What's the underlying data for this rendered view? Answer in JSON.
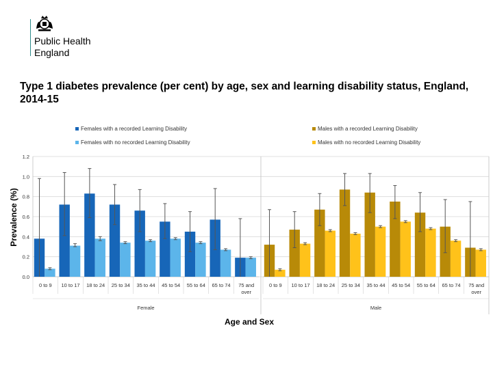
{
  "header": {
    "org_line1": "Public Health",
    "org_line2": "England",
    "title": "Type 1 diabetes prevalence (per cent) by age, sex and learning disability status, England, 2014-15"
  },
  "colors": {
    "female_ld": "#1766b8",
    "female_no_ld": "#5cb5ea",
    "male_ld": "#b88a08",
    "male_no_ld": "#ffc21a",
    "grid": "#d9d9d9",
    "error_bar": "#555555"
  },
  "chart_data": {
    "type": "bar",
    "title": "Type 1 diabetes prevalence (per cent) by age, sex and learning disability status, England, 2014-15",
    "xlabel": "Age and Sex",
    "ylabel": "Prevalence (%)",
    "ylim": [
      0,
      1.2
    ],
    "yticks": [
      "0.0",
      "0.2",
      "0.4",
      "0.6",
      "0.8",
      "1.0",
      "1.2"
    ],
    "categories": [
      "0 to 9",
      "10 to 17",
      "18 to 24",
      "25 to 34",
      "35 to 44",
      "45 to 54",
      "55 to 64",
      "65 to 74",
      "75 and over"
    ],
    "panels": [
      {
        "name": "Female",
        "series": [
          {
            "name": "Females with a recorded Learning Disability",
            "values": [
              0.38,
              0.72,
              0.83,
              0.72,
              0.66,
              0.55,
              0.45,
              0.57,
              0.19
            ],
            "error_low": [
              0.0,
              0.41,
              0.59,
              0.52,
              0.45,
              0.38,
              0.25,
              0.27,
              0.0
            ],
            "error_high": [
              0.98,
              1.04,
              1.08,
              0.92,
              0.87,
              0.73,
              0.65,
              0.88,
              0.58
            ]
          },
          {
            "name": "Females with no recorded Learning Disability",
            "values": [
              0.08,
              0.31,
              0.38,
              0.34,
              0.36,
              0.38,
              0.34,
              0.27,
              0.19
            ],
            "error_low": [
              0.07,
              0.3,
              0.36,
              0.33,
              0.35,
              0.37,
              0.33,
              0.26,
              0.18
            ],
            "error_high": [
              0.09,
              0.33,
              0.4,
              0.35,
              0.37,
              0.39,
              0.35,
              0.28,
              0.2
            ]
          }
        ]
      },
      {
        "name": "Male",
        "series": [
          {
            "name": "Males with a recorded Learning Disability",
            "values": [
              0.32,
              0.47,
              0.67,
              0.87,
              0.84,
              0.75,
              0.64,
              0.5,
              0.29
            ],
            "error_low": [
              0.0,
              0.29,
              0.51,
              0.71,
              0.64,
              0.58,
              0.45,
              0.24,
              0.0
            ],
            "error_high": [
              0.67,
              0.65,
              0.83,
              1.03,
              1.03,
              0.91,
              0.84,
              0.77,
              0.75
            ]
          },
          {
            "name": "Males with no recorded Learning Disability",
            "values": [
              0.07,
              0.33,
              0.46,
              0.43,
              0.5,
              0.55,
              0.48,
              0.36,
              0.27
            ],
            "error_low": [
              0.06,
              0.32,
              0.45,
              0.42,
              0.49,
              0.54,
              0.47,
              0.35,
              0.26
            ],
            "error_high": [
              0.08,
              0.34,
              0.47,
              0.44,
              0.51,
              0.56,
              0.49,
              0.37,
              0.28
            ]
          }
        ]
      }
    ]
  }
}
